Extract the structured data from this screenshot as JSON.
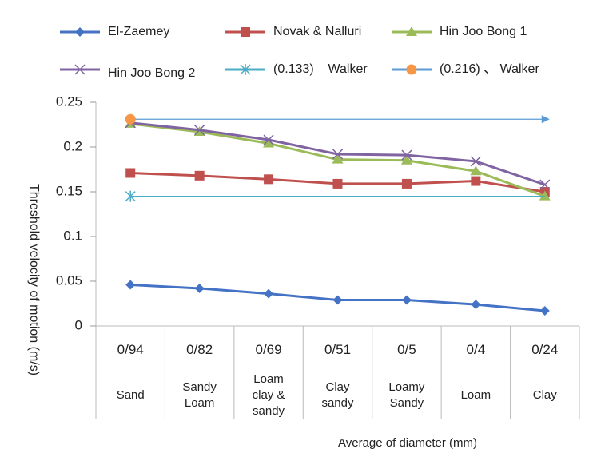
{
  "chart_data": {
    "type": "line",
    "categories": [
      [
        "0/94",
        "Sand"
      ],
      [
        "0/82",
        "Sandy Loam"
      ],
      [
        "0/69",
        "Loam clay & sandy"
      ],
      [
        "0/51",
        "Clay sandy"
      ],
      [
        "0/5",
        "Loamy Sandy"
      ],
      [
        "0/4",
        "Loam"
      ],
      [
        "0/24",
        "Clay"
      ]
    ],
    "series": [
      {
        "name": "El-Zaemey",
        "color": "#4472c4",
        "marker": "diamond",
        "values": [
          0.046,
          0.042,
          0.036,
          0.029,
          0.029,
          0.024,
          0.017
        ]
      },
      {
        "name": "Novak & Nalluri",
        "color": "#c0504d",
        "marker": "square",
        "values": [
          0.171,
          0.168,
          0.164,
          0.159,
          0.159,
          0.162,
          0.15
        ]
      },
      {
        "name": "Hin Joo Bong 1",
        "color": "#9bbb59",
        "marker": "triangle",
        "values": [
          0.226,
          0.217,
          0.204,
          0.186,
          0.185,
          0.173,
          0.145
        ]
      },
      {
        "name": "Hin Joo Bong 2",
        "color": "#8064a2",
        "marker": "x",
        "values": [
          0.227,
          0.219,
          0.208,
          0.192,
          0.191,
          0.184,
          0.158
        ]
      },
      {
        "name": "(0.133)    Walker",
        "color": "#4bacc6",
        "marker": "star",
        "markers": "first",
        "values": [
          0.145,
          0.145,
          0.145,
          0.145,
          0.145,
          0.145,
          0.145
        ]
      },
      {
        "name": "(0.216) 、 Walker",
        "color": "#f79646",
        "line_color": "#5b9bd5",
        "marker": "circle",
        "markers": "first",
        "values": [
          0.231,
          0.231,
          0.231,
          0.231,
          0.231,
          0.231,
          0.231
        ]
      }
    ],
    "ylabel": "Threshold velocity of motion (m/s)",
    "xlabel": "Average of diameter (mm)",
    "ylim": [
      0,
      0.25
    ],
    "yticks": [
      0,
      0.05,
      0.1,
      0.15,
      0.2,
      0.25
    ]
  }
}
